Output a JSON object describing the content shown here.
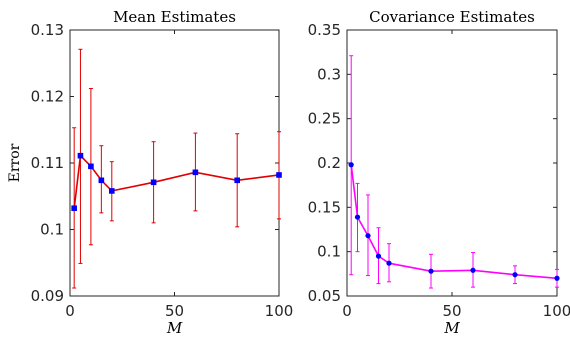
{
  "chart_data": [
    {
      "type": "line",
      "title": "Mean Estimates",
      "xlabel": "M",
      "ylabel": "Error",
      "xlim": [
        0,
        100
      ],
      "ylim": [
        0.09,
        0.13
      ],
      "xticks": [
        0,
        50,
        100
      ],
      "xtick_labels": [
        "0",
        "50",
        "100"
      ],
      "yticks": [
        0.09,
        0.1,
        0.11,
        0.12,
        0.13
      ],
      "ytick_labels": [
        "0.09",
        "0.1",
        "0.11",
        "0.12",
        "0.13"
      ],
      "grid": false,
      "line_color": "#e00000",
      "marker_color": "#0000ff",
      "errorbar_color": "#e00000",
      "series": [
        {
          "x": [
            2,
            5,
            10,
            15,
            20,
            40,
            60,
            80,
            100
          ],
          "y": [
            0.1032,
            0.1111,
            0.1095,
            0.1074,
            0.1058,
            0.1071,
            0.1086,
            0.1074,
            0.1082
          ],
          "err_low": [
            0.0912,
            0.0949,
            0.0977,
            0.1025,
            0.1013,
            0.101,
            0.1028,
            0.1004,
            0.1016
          ],
          "err_high": [
            0.1153,
            0.1271,
            0.1212,
            0.1126,
            0.1102,
            0.1132,
            0.1145,
            0.1144,
            0.1147
          ]
        }
      ]
    },
    {
      "type": "line",
      "title": "Covariance Estimates",
      "xlabel": "M",
      "ylabel": "",
      "xlim": [
        0,
        100
      ],
      "ylim": [
        0.05,
        0.35
      ],
      "xticks": [
        0,
        50,
        100
      ],
      "xtick_labels": [
        "0",
        "50",
        "100"
      ],
      "yticks": [
        0.05,
        0.1,
        0.15,
        0.2,
        0.25,
        0.3,
        0.35
      ],
      "ytick_labels": [
        "0.05",
        "0.1",
        "0.15",
        "0.2",
        "0.25",
        "0.3",
        "0.35"
      ],
      "grid": false,
      "line_color": "#ff00ff",
      "marker_color": "#0000ff",
      "errorbar_color": "#ff00ff",
      "series": [
        {
          "x": [
            2,
            5,
            10,
            15,
            20,
            40,
            60,
            80,
            100
          ],
          "y": [
            0.198,
            0.139,
            0.118,
            0.095,
            0.087,
            0.078,
            0.079,
            0.074,
            0.07
          ],
          "err_low": [
            0.074,
            0.1,
            0.073,
            0.064,
            0.066,
            0.059,
            0.06,
            0.064,
            0.06
          ],
          "err_high": [
            0.321,
            0.177,
            0.164,
            0.127,
            0.109,
            0.097,
            0.099,
            0.084,
            0.08
          ]
        }
      ]
    }
  ]
}
